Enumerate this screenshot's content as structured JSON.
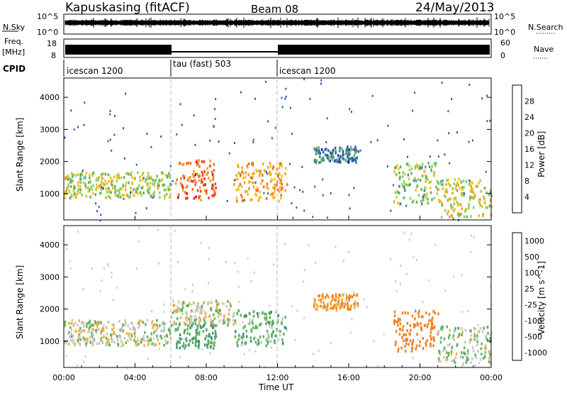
{
  "header": {
    "station": "Kapuskasing (fitACF)",
    "beam": "Beam 08",
    "date": "24/May/2013"
  },
  "top_panels": {
    "nsky_label": "N.Sky",
    "nsky_ticks": [
      "10^5",
      "10^0"
    ],
    "nsearch_label": "N.Search",
    "nsearch_ticks": [
      "10^5",
      "10^0"
    ],
    "freq_label_1": "Freq.",
    "freq_label_2": "[MHz]",
    "freq_ticks": [
      "18",
      "8"
    ],
    "nave_label": "Nave",
    "nave_ticks": [
      "60",
      "0"
    ],
    "cpid_label": "CPID",
    "cpid_segments": [
      {
        "label": "icescan 1200",
        "start_h": 0,
        "end_h": 6
      },
      {
        "label": "tau (fast) 503",
        "start_h": 6,
        "end_h": 12
      },
      {
        "label": "icescan 1200",
        "start_h": 12,
        "end_h": 24
      }
    ]
  },
  "x_axis": {
    "label": "Time UT",
    "ticks": [
      "00:00",
      "04:00",
      "08:00",
      "12:00",
      "16:00",
      "20:00",
      "00:00"
    ],
    "range_hours": [
      0,
      24
    ]
  },
  "y_axis": {
    "label": "Slant Range [km]",
    "ticks": [
      "1000",
      "2000",
      "3000",
      "4000"
    ],
    "range_km": [
      180,
      4600
    ]
  },
  "power_colorbar": {
    "label": "Power [dB]",
    "ticks": [
      "4",
      "8",
      "12",
      "16",
      "20",
      "24",
      "28"
    ],
    "colors": [
      "#1a1aff",
      "#2c5aa8",
      "#3f8a7a",
      "#5fb06a",
      "#8fd060",
      "#f0c020",
      "#f0a020",
      "#f07020",
      "#f04020",
      "#e00000"
    ]
  },
  "velocity_colorbar": {
    "label": "Velocity [m s^-1]",
    "ticks": [
      "1000",
      "500",
      "100",
      "25",
      "-25",
      "-100",
      "-500",
      "-1000"
    ],
    "colors": [
      "#2030c0",
      "#3060a0",
      "#40907a",
      "#60b060",
      "#c8c8c8",
      "#f0b040",
      "#f08020",
      "#f05010",
      "#e00000"
    ]
  },
  "chart_data": [
    {
      "type": "heatmap",
      "title": "Power [dB]",
      "xlabel": "Time UT",
      "ylabel": "Slant Range [km]",
      "xlim_hours": [
        0,
        24
      ],
      "ylim_km": [
        180,
        4600
      ],
      "echo_regions": [
        {
          "t0": 0.0,
          "t1": 6.0,
          "r0": 900,
          "r1": 1700,
          "value_db": 14
        },
        {
          "t0": 6.2,
          "t1": 8.5,
          "r0": 800,
          "r1": 2100,
          "value_db": 24
        },
        {
          "t0": 9.5,
          "t1": 12.5,
          "r0": 800,
          "r1": 2000,
          "value_db": 20
        },
        {
          "t0": 14.0,
          "t1": 16.5,
          "r0": 2000,
          "r1": 2500,
          "value_db": 6
        },
        {
          "t0": 18.5,
          "t1": 21.0,
          "r0": 700,
          "r1": 2000,
          "value_db": 12
        },
        {
          "t0": 21.0,
          "t1": 24.0,
          "r0": 300,
          "r1": 1500,
          "value_db": 16
        }
      ]
    },
    {
      "type": "heatmap",
      "title": "Velocity [m s^-1]",
      "xlabel": "Time UT",
      "ylabel": "Slant Range [km]",
      "xlim_hours": [
        0,
        24
      ],
      "ylim_km": [
        180,
        4600
      ],
      "echo_regions": [
        {
          "t0": 0.0,
          "t1": 6.0,
          "r0": 900,
          "r1": 1700,
          "value_ms": 0
        },
        {
          "t0": 6.0,
          "t1": 9.5,
          "r0": 1500,
          "r1": 2300,
          "value_ms": 0
        },
        {
          "t0": 6.2,
          "t1": 8.5,
          "r0": 800,
          "r1": 1600,
          "value_ms": 100
        },
        {
          "t0": 9.5,
          "t1": 12.5,
          "r0": 900,
          "r1": 2000,
          "value_ms": 60
        },
        {
          "t0": 14.0,
          "t1": 16.5,
          "r0": 2000,
          "r1": 2500,
          "value_ms": -100
        },
        {
          "t0": 18.5,
          "t1": 21.0,
          "r0": 700,
          "r1": 2000,
          "value_ms": -300
        },
        {
          "t0": 21.0,
          "t1": 24.0,
          "r0": 300,
          "r1": 1500,
          "value_ms": 20
        }
      ]
    }
  ]
}
